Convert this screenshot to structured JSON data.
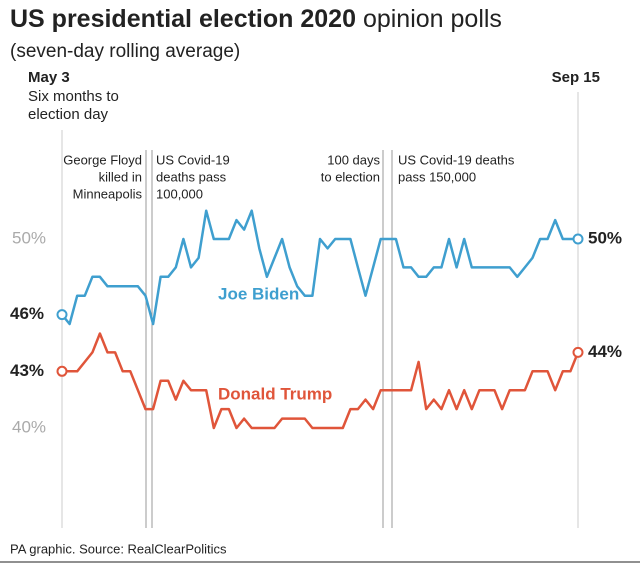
{
  "chart_data": {
    "type": "line",
    "title": [
      "US presidential election 2020",
      "opinion polls"
    ],
    "subtitle": "(seven-day rolling average)",
    "start_note": [
      "Six months to",
      "election day"
    ],
    "source": "PA graphic. Source: RealClearPolitics",
    "annotations": [
      [
        "George Floyd",
        "killed in",
        "Minneapolis"
      ],
      [
        "US Covid-19",
        "deaths pass",
        "100,000"
      ],
      [
        "100 days",
        "to election"
      ],
      [
        "US Covid-19 deaths",
        "pass 150,000"
      ]
    ],
    "categories": [
      "May 3",
      null,
      null,
      null,
      null,
      null,
      null,
      null,
      null,
      null,
      null,
      null,
      null,
      null,
      null,
      null,
      null,
      null,
      null,
      null,
      null,
      null,
      null,
      null,
      null,
      null,
      null,
      null,
      null,
      null,
      null,
      null,
      null,
      null,
      null,
      null,
      null,
      null,
      null,
      null,
      null,
      null,
      null,
      null,
      null,
      null,
      null,
      null,
      null,
      null,
      null,
      null,
      null,
      null,
      null,
      null,
      null,
      null,
      null,
      null,
      null,
      null,
      null,
      null,
      null,
      null,
      null,
      null,
      "Sep 15"
    ],
    "ylim": [
      35,
      55
    ],
    "yticks": [
      {
        "value": 40,
        "label": "40%"
      },
      {
        "value": 50,
        "label": "50%"
      }
    ],
    "series": [
      {
        "name": "Joe Biden",
        "color": "#3f9fcf",
        "values": [
          46,
          45.5,
          47,
          47,
          48,
          48,
          47.5,
          47.5,
          47.5,
          47.5,
          47.5,
          47,
          45.5,
          48,
          48,
          48.5,
          50,
          48.5,
          49,
          51.5,
          50,
          50,
          50,
          51,
          50.5,
          51.5,
          49.5,
          48,
          49,
          50,
          48.5,
          47.5,
          47,
          47,
          50,
          49.5,
          50,
          50,
          50,
          48.5,
          47,
          48.5,
          50,
          50,
          50,
          48.5,
          48.5,
          48,
          48,
          48.5,
          48.5,
          50,
          48.5,
          50,
          48.5,
          48.5,
          48.5,
          48.5,
          48.5,
          48.5,
          48,
          48.5,
          49,
          50,
          50,
          51,
          50,
          50,
          50
        ],
        "value_labels": [
          "46%",
          null,
          null,
          null,
          null,
          null,
          null,
          null,
          null,
          null,
          null,
          null,
          null,
          null,
          null,
          null,
          null,
          null,
          null,
          null,
          null,
          null,
          null,
          null,
          null,
          null,
          null,
          null,
          null,
          null,
          null,
          null,
          null,
          null,
          null,
          null,
          null,
          null,
          null,
          null,
          null,
          null,
          null,
          null,
          null,
          null,
          null,
          null,
          null,
          null,
          null,
          null,
          null,
          null,
          null,
          null,
          null,
          null,
          null,
          null,
          null,
          null,
          null,
          null,
          null,
          null,
          null,
          null,
          "50%"
        ]
      },
      {
        "name": "Donald Trump",
        "color": "#e0553a",
        "values": [
          43,
          43,
          43,
          43.5,
          44,
          45,
          44,
          44,
          43,
          43,
          42,
          41,
          41,
          42.5,
          42.5,
          41.5,
          42.5,
          42,
          42,
          42,
          40,
          41,
          41,
          40,
          40.5,
          40,
          40,
          40,
          40,
          40.5,
          40.5,
          40.5,
          40.5,
          40,
          40,
          40,
          40,
          40,
          41,
          41,
          41.5,
          41,
          42,
          42,
          42,
          42,
          42,
          43.5,
          41,
          41.5,
          41,
          42,
          41,
          42,
          41,
          42,
          42,
          42,
          41,
          42,
          42,
          42,
          43,
          43,
          43,
          42,
          43,
          43,
          44
        ],
        "value_labels": [
          "43%",
          null,
          null,
          null,
          null,
          null,
          null,
          null,
          null,
          null,
          null,
          null,
          null,
          null,
          null,
          null,
          null,
          null,
          null,
          null,
          null,
          null,
          null,
          null,
          null,
          null,
          null,
          null,
          null,
          null,
          null,
          null,
          null,
          null,
          null,
          null,
          null,
          null,
          null,
          null,
          null,
          null,
          null,
          null,
          null,
          null,
          null,
          null,
          null,
          null,
          null,
          null,
          null,
          null,
          null,
          null,
          null,
          null,
          null,
          null,
          null,
          null,
          null,
          null,
          null,
          null,
          null,
          null,
          "44%"
        ]
      }
    ]
  }
}
